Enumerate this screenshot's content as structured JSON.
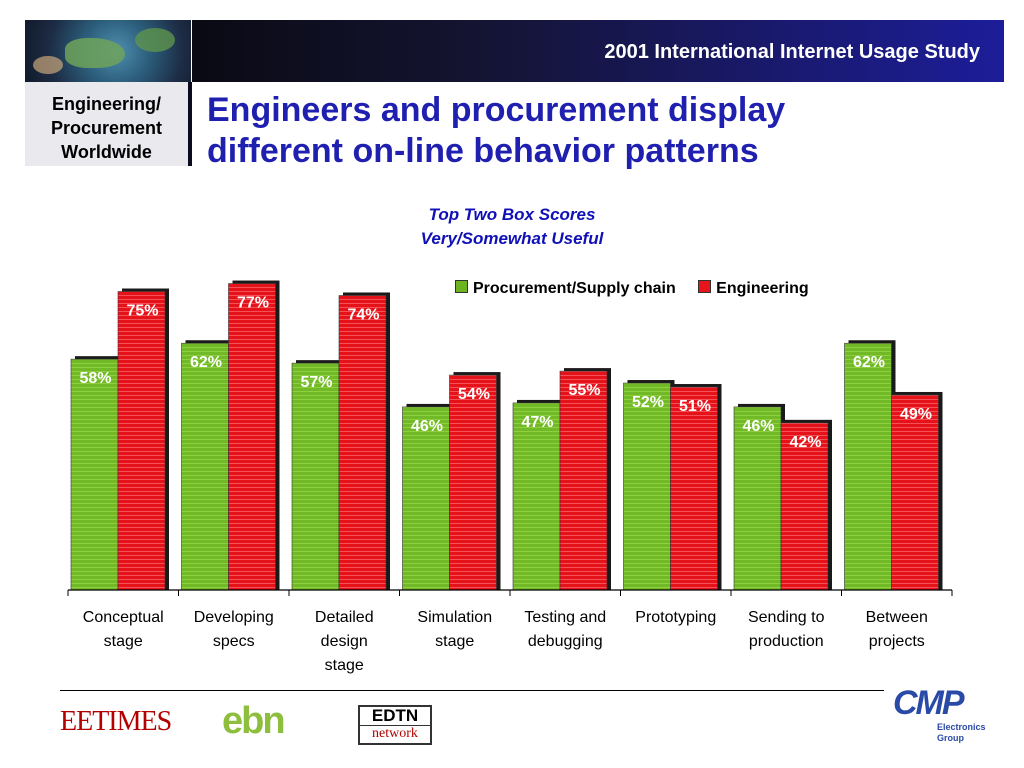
{
  "header": {
    "study_title": "2001 International Internet Usage Study",
    "section_label_lines": [
      "Engineering/",
      "Procurement",
      "Worldwide"
    ],
    "headline_lines": [
      "Engineers and procurement display",
      "different on-line behavior patterns"
    ]
  },
  "chart_data": {
    "type": "bar",
    "title": "Top Two Box Scores",
    "subtitle": "Very/Somewhat Useful",
    "categories": [
      [
        "Conceptual",
        "stage"
      ],
      [
        "Developing",
        "specs"
      ],
      [
        "Detailed",
        "design",
        "stage"
      ],
      [
        "Simulation",
        "stage"
      ],
      [
        "Testing and",
        "debugging"
      ],
      [
        "Prototyping"
      ],
      [
        "Sending to",
        "production"
      ],
      [
        "Between",
        "projects"
      ]
    ],
    "series": [
      {
        "name": "Procurement/Supply chain",
        "color": "#6cb520",
        "values": [
          58,
          62,
          57,
          46,
          47,
          52,
          46,
          62
        ],
        "labels": [
          "58%",
          "62%",
          "57%",
          "46%",
          "47%",
          "52%",
          "46%",
          "62%"
        ]
      },
      {
        "name": "Engineering",
        "color": "#e8141c",
        "values": [
          75,
          77,
          74,
          54,
          55,
          51,
          42,
          49
        ],
        "labels": [
          "75%",
          "77%",
          "74%",
          "54%",
          "55%",
          "51%",
          "42%",
          "49%"
        ]
      }
    ],
    "ylim": [
      0,
      100
    ],
    "grid": false,
    "legend_position": "top-right"
  },
  "footer": {
    "logos": {
      "eetimes": "EETIMES",
      "ebn": "ebn",
      "edtn_top": "EDTN",
      "edtn_bottom": "network",
      "cmp": "CMP",
      "cmp_sub_lines": [
        "Electronics",
        "Group"
      ]
    }
  }
}
